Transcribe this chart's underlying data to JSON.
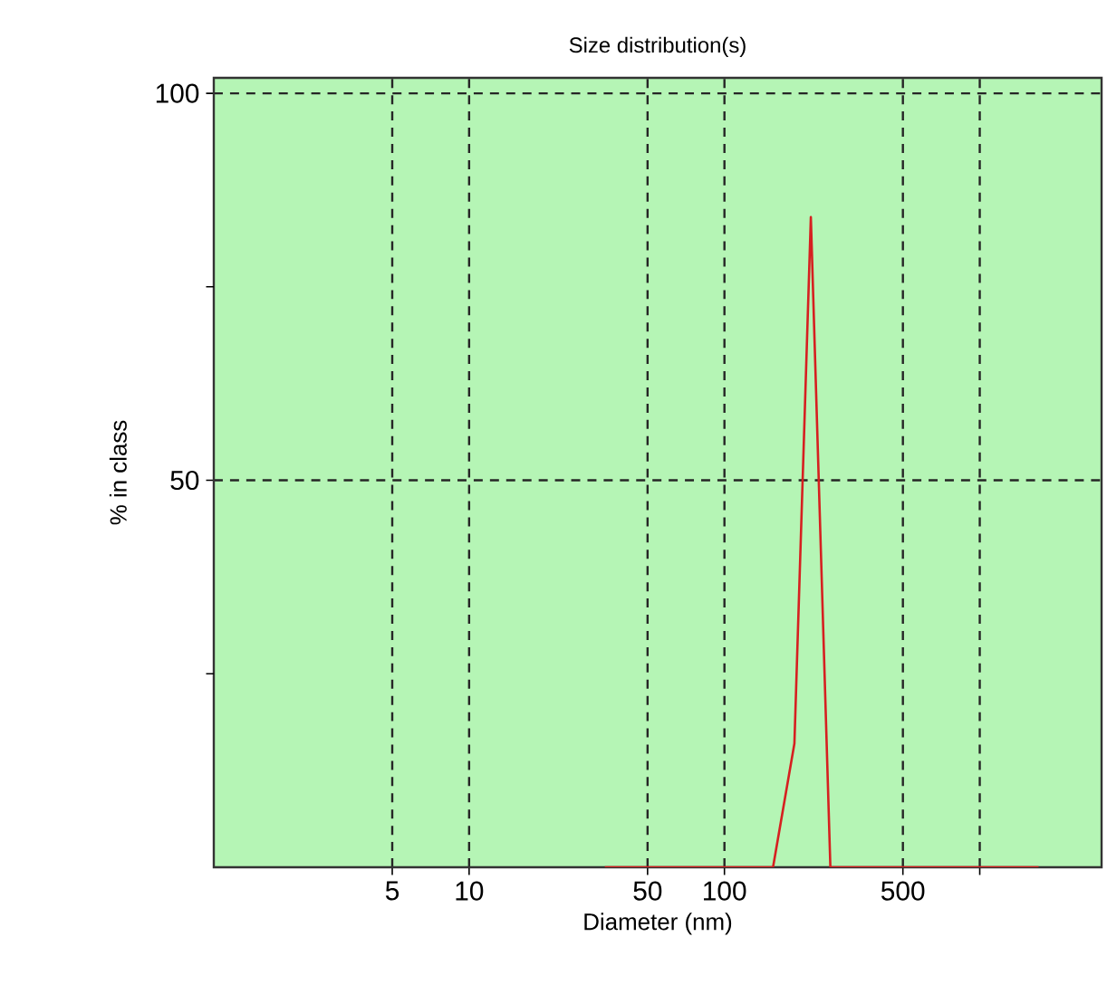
{
  "chart_data": {
    "type": "line",
    "title": "Size distribution(s)",
    "xlabel": "Diameter (nm)",
    "ylabel": "% in class",
    "log": "x",
    "xlim": [
      1,
      3000
    ],
    "ylim": [
      0,
      102
    ],
    "xticks": [
      5,
      10,
      50,
      100,
      500,
      {
        "value": 1000,
        "label": null
      }
    ],
    "yticks": [
      {
        "value": 25,
        "label": null
      },
      50,
      {
        "value": 75,
        "label": null
      },
      100
    ],
    "grid": true,
    "series": [
      {
        "color": "#d62020",
        "x": [
          34,
          155,
          188,
          218,
          260,
          1700
        ],
        "values": [
          0,
          0,
          16,
          84,
          0,
          0
        ]
      }
    ]
  }
}
